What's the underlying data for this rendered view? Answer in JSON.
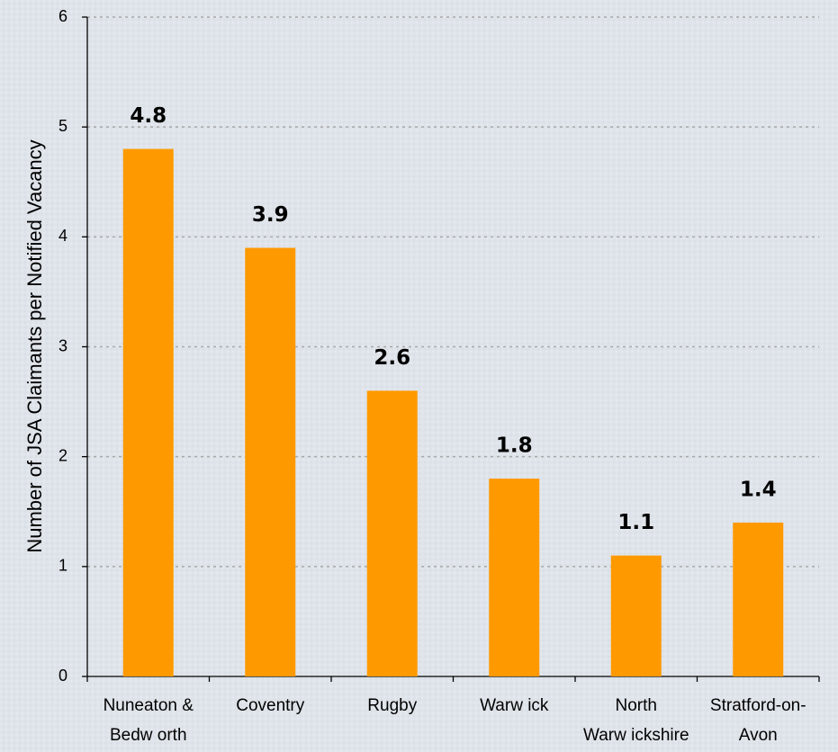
{
  "chart_data": {
    "type": "bar",
    "y_label": "Number of JSA Claimants per Notified Vacancy",
    "categories": [
      "Nuneaton &\nBedw orth",
      "Coventry",
      "Rugby",
      "Warw ick",
      "North\nWarw ickshire",
      "Stratford-on-\nAvon"
    ],
    "values": [
      4.8,
      3.9,
      2.6,
      1.8,
      1.1,
      1.4
    ],
    "color": "#ff9900",
    "ylim": [
      0,
      6
    ],
    "yticks": [
      0,
      1,
      2,
      3,
      4,
      5,
      6
    ],
    "grid": true
  }
}
